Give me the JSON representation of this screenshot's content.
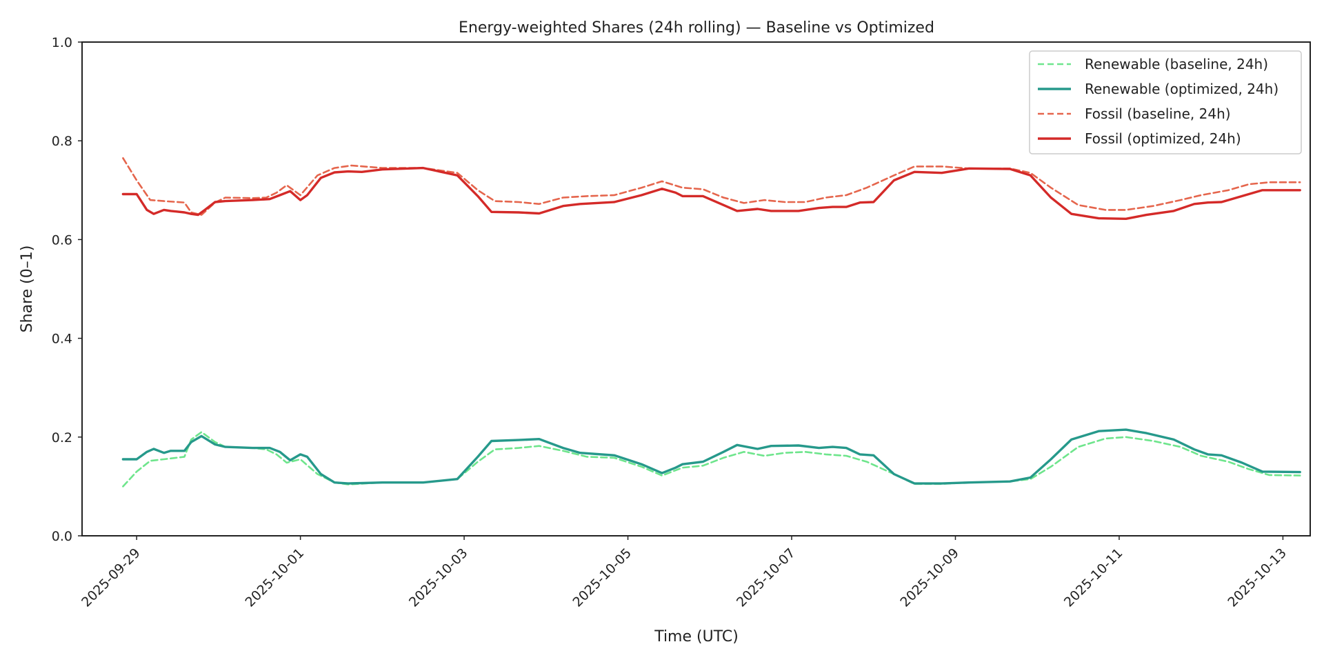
{
  "chart_data": {
    "type": "line",
    "title": "Energy-weighted Shares (24h rolling) — Baseline vs Optimized",
    "xlabel": "Time (UTC)",
    "ylabel": "Share (0–1)",
    "ylim": [
      0,
      1
    ],
    "xlim": [
      "2025-09-28T08:00",
      "2025-10-13T08:00"
    ],
    "y_ticks": [
      0.0,
      0.2,
      0.4,
      0.6,
      0.8,
      1.0
    ],
    "y_tick_labels": [
      "0.0",
      "0.2",
      "0.4",
      "0.6",
      "0.8",
      "1.0"
    ],
    "x_ticks": [
      "2025-09-29",
      "2025-10-01",
      "2025-10-03",
      "2025-10-05",
      "2025-10-07",
      "2025-10-09",
      "2025-10-11",
      "2025-10-13"
    ],
    "grid": false,
    "legend_position": "top-right",
    "series": [
      {
        "name": "Renewable (baseline, 24h)",
        "color": "#6ee58c",
        "dash": "dashed",
        "points": [
          [
            "2025-09-28T20:00",
            0.1
          ],
          [
            "2025-09-29T00:00",
            0.13
          ],
          [
            "2025-09-29T04:00",
            0.152
          ],
          [
            "2025-09-29T08:00",
            0.155
          ],
          [
            "2025-09-29T14:00",
            0.16
          ],
          [
            "2025-09-29T16:00",
            0.195
          ],
          [
            "2025-09-29T19:00",
            0.21
          ],
          [
            "2025-09-29T23:00",
            0.19
          ],
          [
            "2025-09-30T02:00",
            0.18
          ],
          [
            "2025-09-30T10:00",
            0.178
          ],
          [
            "2025-09-30T14:00",
            0.175
          ],
          [
            "2025-09-30T17:00",
            0.165
          ],
          [
            "2025-09-30T20:00",
            0.148
          ],
          [
            "2025-10-01T00:00",
            0.155
          ],
          [
            "2025-10-01T05:00",
            0.125
          ],
          [
            "2025-10-01T10:00",
            0.108
          ],
          [
            "2025-10-01T14:00",
            0.104
          ],
          [
            "2025-10-02T00:00",
            0.108
          ],
          [
            "2025-10-02T12:00",
            0.108
          ],
          [
            "2025-10-02T22:00",
            0.115
          ],
          [
            "2025-10-03T04:00",
            0.15
          ],
          [
            "2025-10-03T09:00",
            0.175
          ],
          [
            "2025-10-03T16:00",
            0.178
          ],
          [
            "2025-10-03T22:00",
            0.182
          ],
          [
            "2025-10-04T05:00",
            0.172
          ],
          [
            "2025-10-04T12:00",
            0.16
          ],
          [
            "2025-10-04T20:00",
            0.158
          ],
          [
            "2025-10-05T04:00",
            0.14
          ],
          [
            "2025-10-05T10:00",
            0.122
          ],
          [
            "2025-10-05T16:00",
            0.138
          ],
          [
            "2025-10-05T22:00",
            0.142
          ],
          [
            "2025-10-06T04:00",
            0.158
          ],
          [
            "2025-10-06T10:00",
            0.17
          ],
          [
            "2025-10-06T16:00",
            0.162
          ],
          [
            "2025-10-06T22:00",
            0.168
          ],
          [
            "2025-10-07T04:00",
            0.17
          ],
          [
            "2025-10-07T10:00",
            0.165
          ],
          [
            "2025-10-07T16:00",
            0.162
          ],
          [
            "2025-10-07T22:00",
            0.15
          ],
          [
            "2025-10-08T06:00",
            0.125
          ],
          [
            "2025-10-08T12:00",
            0.105
          ],
          [
            "2025-10-08T20:00",
            0.105
          ],
          [
            "2025-10-09T04:00",
            0.108
          ],
          [
            "2025-10-09T16:00",
            0.11
          ],
          [
            "2025-10-09T22:00",
            0.115
          ],
          [
            "2025-10-10T04:00",
            0.14
          ],
          [
            "2025-10-10T12:00",
            0.18
          ],
          [
            "2025-10-10T20:00",
            0.197
          ],
          [
            "2025-10-11T02:00",
            0.2
          ],
          [
            "2025-10-11T10:00",
            0.192
          ],
          [
            "2025-10-11T18:00",
            0.18
          ],
          [
            "2025-10-12T00:00",
            0.162
          ],
          [
            "2025-10-12T08:00",
            0.15
          ],
          [
            "2025-10-12T14:00",
            0.135
          ],
          [
            "2025-10-12T20:00",
            0.123
          ],
          [
            "2025-10-13T05:00",
            0.122
          ]
        ]
      },
      {
        "name": "Renewable (optimized, 24h)",
        "color": "#26998b",
        "dash": "solid",
        "points": [
          [
            "2025-09-28T20:00",
            0.155
          ],
          [
            "2025-09-29T00:00",
            0.155
          ],
          [
            "2025-09-29T03:00",
            0.17
          ],
          [
            "2025-09-29T05:00",
            0.176
          ],
          [
            "2025-09-29T08:00",
            0.168
          ],
          [
            "2025-09-29T10:00",
            0.172
          ],
          [
            "2025-09-29T14:00",
            0.172
          ],
          [
            "2025-09-29T16:00",
            0.19
          ],
          [
            "2025-09-29T19:00",
            0.202
          ],
          [
            "2025-09-29T23:00",
            0.185
          ],
          [
            "2025-09-30T02:00",
            0.18
          ],
          [
            "2025-09-30T10:00",
            0.178
          ],
          [
            "2025-09-30T15:00",
            0.178
          ],
          [
            "2025-09-30T18:00",
            0.17
          ],
          [
            "2025-09-30T21:00",
            0.153
          ],
          [
            "2025-10-01T00:00",
            0.165
          ],
          [
            "2025-10-01T02:00",
            0.16
          ],
          [
            "2025-10-01T06:00",
            0.125
          ],
          [
            "2025-10-01T10:00",
            0.108
          ],
          [
            "2025-10-01T14:00",
            0.106
          ],
          [
            "2025-10-02T00:00",
            0.108
          ],
          [
            "2025-10-02T12:00",
            0.108
          ],
          [
            "2025-10-02T22:00",
            0.115
          ],
          [
            "2025-10-03T04:00",
            0.16
          ],
          [
            "2025-10-03T08:00",
            0.192
          ],
          [
            "2025-10-03T16:00",
            0.194
          ],
          [
            "2025-10-03T22:00",
            0.196
          ],
          [
            "2025-10-04T05:00",
            0.178
          ],
          [
            "2025-10-04T10:00",
            0.168
          ],
          [
            "2025-10-04T20:00",
            0.163
          ],
          [
            "2025-10-05T04:00",
            0.145
          ],
          [
            "2025-10-05T10:00",
            0.127
          ],
          [
            "2025-10-05T14:00",
            0.138
          ],
          [
            "2025-10-05T16:00",
            0.145
          ],
          [
            "2025-10-05T22:00",
            0.15
          ],
          [
            "2025-10-06T04:00",
            0.17
          ],
          [
            "2025-10-06T08:00",
            0.184
          ],
          [
            "2025-10-06T14:00",
            0.176
          ],
          [
            "2025-10-06T18:00",
            0.182
          ],
          [
            "2025-10-07T02:00",
            0.183
          ],
          [
            "2025-10-07T08:00",
            0.178
          ],
          [
            "2025-10-07T12:00",
            0.18
          ],
          [
            "2025-10-07T16:00",
            0.178
          ],
          [
            "2025-10-07T20:00",
            0.165
          ],
          [
            "2025-10-08T00:00",
            0.163
          ],
          [
            "2025-10-08T06:00",
            0.125
          ],
          [
            "2025-10-08T12:00",
            0.106
          ],
          [
            "2025-10-08T20:00",
            0.106
          ],
          [
            "2025-10-09T04:00",
            0.108
          ],
          [
            "2025-10-09T16:00",
            0.11
          ],
          [
            "2025-10-09T22:00",
            0.118
          ],
          [
            "2025-10-10T04:00",
            0.155
          ],
          [
            "2025-10-10T10:00",
            0.195
          ],
          [
            "2025-10-10T18:00",
            0.212
          ],
          [
            "2025-10-11T02:00",
            0.215
          ],
          [
            "2025-10-11T08:00",
            0.208
          ],
          [
            "2025-10-11T16:00",
            0.195
          ],
          [
            "2025-10-11T22:00",
            0.175
          ],
          [
            "2025-10-12T02:00",
            0.165
          ],
          [
            "2025-10-12T06:00",
            0.163
          ],
          [
            "2025-10-12T12:00",
            0.148
          ],
          [
            "2025-10-12T18:00",
            0.13
          ],
          [
            "2025-10-13T05:00",
            0.129
          ]
        ]
      },
      {
        "name": "Fossil (baseline, 24h)",
        "color": "#e5654c",
        "dash": "dashed",
        "points": [
          [
            "2025-09-28T20:00",
            0.765
          ],
          [
            "2025-09-29T00:00",
            0.72
          ],
          [
            "2025-09-29T04:00",
            0.68
          ],
          [
            "2025-09-29T08:00",
            0.678
          ],
          [
            "2025-09-29T14:00",
            0.675
          ],
          [
            "2025-09-29T16:00",
            0.655
          ],
          [
            "2025-09-29T19:00",
            0.65
          ],
          [
            "2025-09-29T23:00",
            0.675
          ],
          [
            "2025-09-30T02:00",
            0.685
          ],
          [
            "2025-09-30T10:00",
            0.684
          ],
          [
            "2025-09-30T14:00",
            0.685
          ],
          [
            "2025-09-30T17:00",
            0.695
          ],
          [
            "2025-09-30T20:00",
            0.71
          ],
          [
            "2025-10-01T00:00",
            0.69
          ],
          [
            "2025-10-01T05:00",
            0.73
          ],
          [
            "2025-10-01T10:00",
            0.745
          ],
          [
            "2025-10-01T15:00",
            0.75
          ],
          [
            "2025-10-02T00:00",
            0.745
          ],
          [
            "2025-10-02T12:00",
            0.745
          ],
          [
            "2025-10-02T22:00",
            0.735
          ],
          [
            "2025-10-03T04:00",
            0.7
          ],
          [
            "2025-10-03T09:00",
            0.678
          ],
          [
            "2025-10-03T16:00",
            0.676
          ],
          [
            "2025-10-03T22:00",
            0.672
          ],
          [
            "2025-10-04T05:00",
            0.685
          ],
          [
            "2025-10-04T12:00",
            0.688
          ],
          [
            "2025-10-04T20:00",
            0.69
          ],
          [
            "2025-10-05T04:00",
            0.705
          ],
          [
            "2025-10-05T10:00",
            0.718
          ],
          [
            "2025-10-05T16:00",
            0.705
          ],
          [
            "2025-10-05T22:00",
            0.702
          ],
          [
            "2025-10-06T04:00",
            0.685
          ],
          [
            "2025-10-06T10:00",
            0.674
          ],
          [
            "2025-10-06T16:00",
            0.68
          ],
          [
            "2025-10-06T22:00",
            0.676
          ],
          [
            "2025-10-07T04:00",
            0.676
          ],
          [
            "2025-10-07T10:00",
            0.685
          ],
          [
            "2025-10-07T16:00",
            0.69
          ],
          [
            "2025-10-07T22:00",
            0.705
          ],
          [
            "2025-10-08T06:00",
            0.73
          ],
          [
            "2025-10-08T12:00",
            0.748
          ],
          [
            "2025-10-08T20:00",
            0.748
          ],
          [
            "2025-10-09T04:00",
            0.744
          ],
          [
            "2025-10-09T16:00",
            0.744
          ],
          [
            "2025-10-09T22:00",
            0.735
          ],
          [
            "2025-10-10T04:00",
            0.705
          ],
          [
            "2025-10-10T12:00",
            0.67
          ],
          [
            "2025-10-10T20:00",
            0.66
          ],
          [
            "2025-10-11T02:00",
            0.66
          ],
          [
            "2025-10-11T10:00",
            0.668
          ],
          [
            "2025-10-11T18:00",
            0.68
          ],
          [
            "2025-10-12T00:00",
            0.69
          ],
          [
            "2025-10-12T08:00",
            0.7
          ],
          [
            "2025-10-12T14:00",
            0.712
          ],
          [
            "2025-10-12T20:00",
            0.716
          ],
          [
            "2025-10-13T05:00",
            0.716
          ]
        ]
      },
      {
        "name": "Fossil (optimized, 24h)",
        "color": "#d42a28",
        "dash": "solid",
        "points": [
          [
            "2025-09-28T20:00",
            0.692
          ],
          [
            "2025-09-29T00:00",
            0.692
          ],
          [
            "2025-09-29T03:00",
            0.66
          ],
          [
            "2025-09-29T05:00",
            0.652
          ],
          [
            "2025-09-29T08:00",
            0.66
          ],
          [
            "2025-09-29T10:00",
            0.658
          ],
          [
            "2025-09-29T14:00",
            0.655
          ],
          [
            "2025-09-29T16:00",
            0.652
          ],
          [
            "2025-09-29T18:00",
            0.65
          ],
          [
            "2025-09-29T20:00",
            0.66
          ],
          [
            "2025-09-29T23:00",
            0.676
          ],
          [
            "2025-09-30T02:00",
            0.678
          ],
          [
            "2025-09-30T10:00",
            0.68
          ],
          [
            "2025-09-30T15:00",
            0.682
          ],
          [
            "2025-09-30T18:00",
            0.69
          ],
          [
            "2025-09-30T21:00",
            0.698
          ],
          [
            "2025-10-01T00:00",
            0.68
          ],
          [
            "2025-10-01T02:00",
            0.69
          ],
          [
            "2025-10-01T06:00",
            0.725
          ],
          [
            "2025-10-01T10:00",
            0.736
          ],
          [
            "2025-10-01T14:00",
            0.738
          ],
          [
            "2025-10-01T18:00",
            0.737
          ],
          [
            "2025-10-02T00:00",
            0.742
          ],
          [
            "2025-10-02T12:00",
            0.745
          ],
          [
            "2025-10-02T22:00",
            0.73
          ],
          [
            "2025-10-03T04:00",
            0.688
          ],
          [
            "2025-10-03T08:00",
            0.656
          ],
          [
            "2025-10-03T16:00",
            0.655
          ],
          [
            "2025-10-03T22:00",
            0.653
          ],
          [
            "2025-10-04T05:00",
            0.668
          ],
          [
            "2025-10-04T10:00",
            0.672
          ],
          [
            "2025-10-04T20:00",
            0.676
          ],
          [
            "2025-10-05T04:00",
            0.69
          ],
          [
            "2025-10-05T10:00",
            0.703
          ],
          [
            "2025-10-05T14:00",
            0.695
          ],
          [
            "2025-10-05T16:00",
            0.688
          ],
          [
            "2025-10-05T22:00",
            0.688
          ],
          [
            "2025-10-06T04:00",
            0.67
          ],
          [
            "2025-10-06T08:00",
            0.658
          ],
          [
            "2025-10-06T14:00",
            0.662
          ],
          [
            "2025-10-06T18:00",
            0.658
          ],
          [
            "2025-10-07T02:00",
            0.658
          ],
          [
            "2025-10-07T08:00",
            0.664
          ],
          [
            "2025-10-07T12:00",
            0.666
          ],
          [
            "2025-10-07T16:00",
            0.666
          ],
          [
            "2025-10-07T20:00",
            0.675
          ],
          [
            "2025-10-08T00:00",
            0.676
          ],
          [
            "2025-10-08T06:00",
            0.72
          ],
          [
            "2025-10-08T12:00",
            0.737
          ],
          [
            "2025-10-08T20:00",
            0.735
          ],
          [
            "2025-10-09T04:00",
            0.744
          ],
          [
            "2025-10-09T16:00",
            0.743
          ],
          [
            "2025-10-09T22:00",
            0.73
          ],
          [
            "2025-10-10T04:00",
            0.685
          ],
          [
            "2025-10-10T10:00",
            0.652
          ],
          [
            "2025-10-10T18:00",
            0.643
          ],
          [
            "2025-10-11T02:00",
            0.642
          ],
          [
            "2025-10-11T08:00",
            0.65
          ],
          [
            "2025-10-11T16:00",
            0.658
          ],
          [
            "2025-10-11T22:00",
            0.672
          ],
          [
            "2025-10-12T02:00",
            0.675
          ],
          [
            "2025-10-12T06:00",
            0.676
          ],
          [
            "2025-10-12T12:00",
            0.688
          ],
          [
            "2025-10-12T18:00",
            0.7
          ],
          [
            "2025-10-13T05:00",
            0.7
          ]
        ]
      }
    ]
  }
}
